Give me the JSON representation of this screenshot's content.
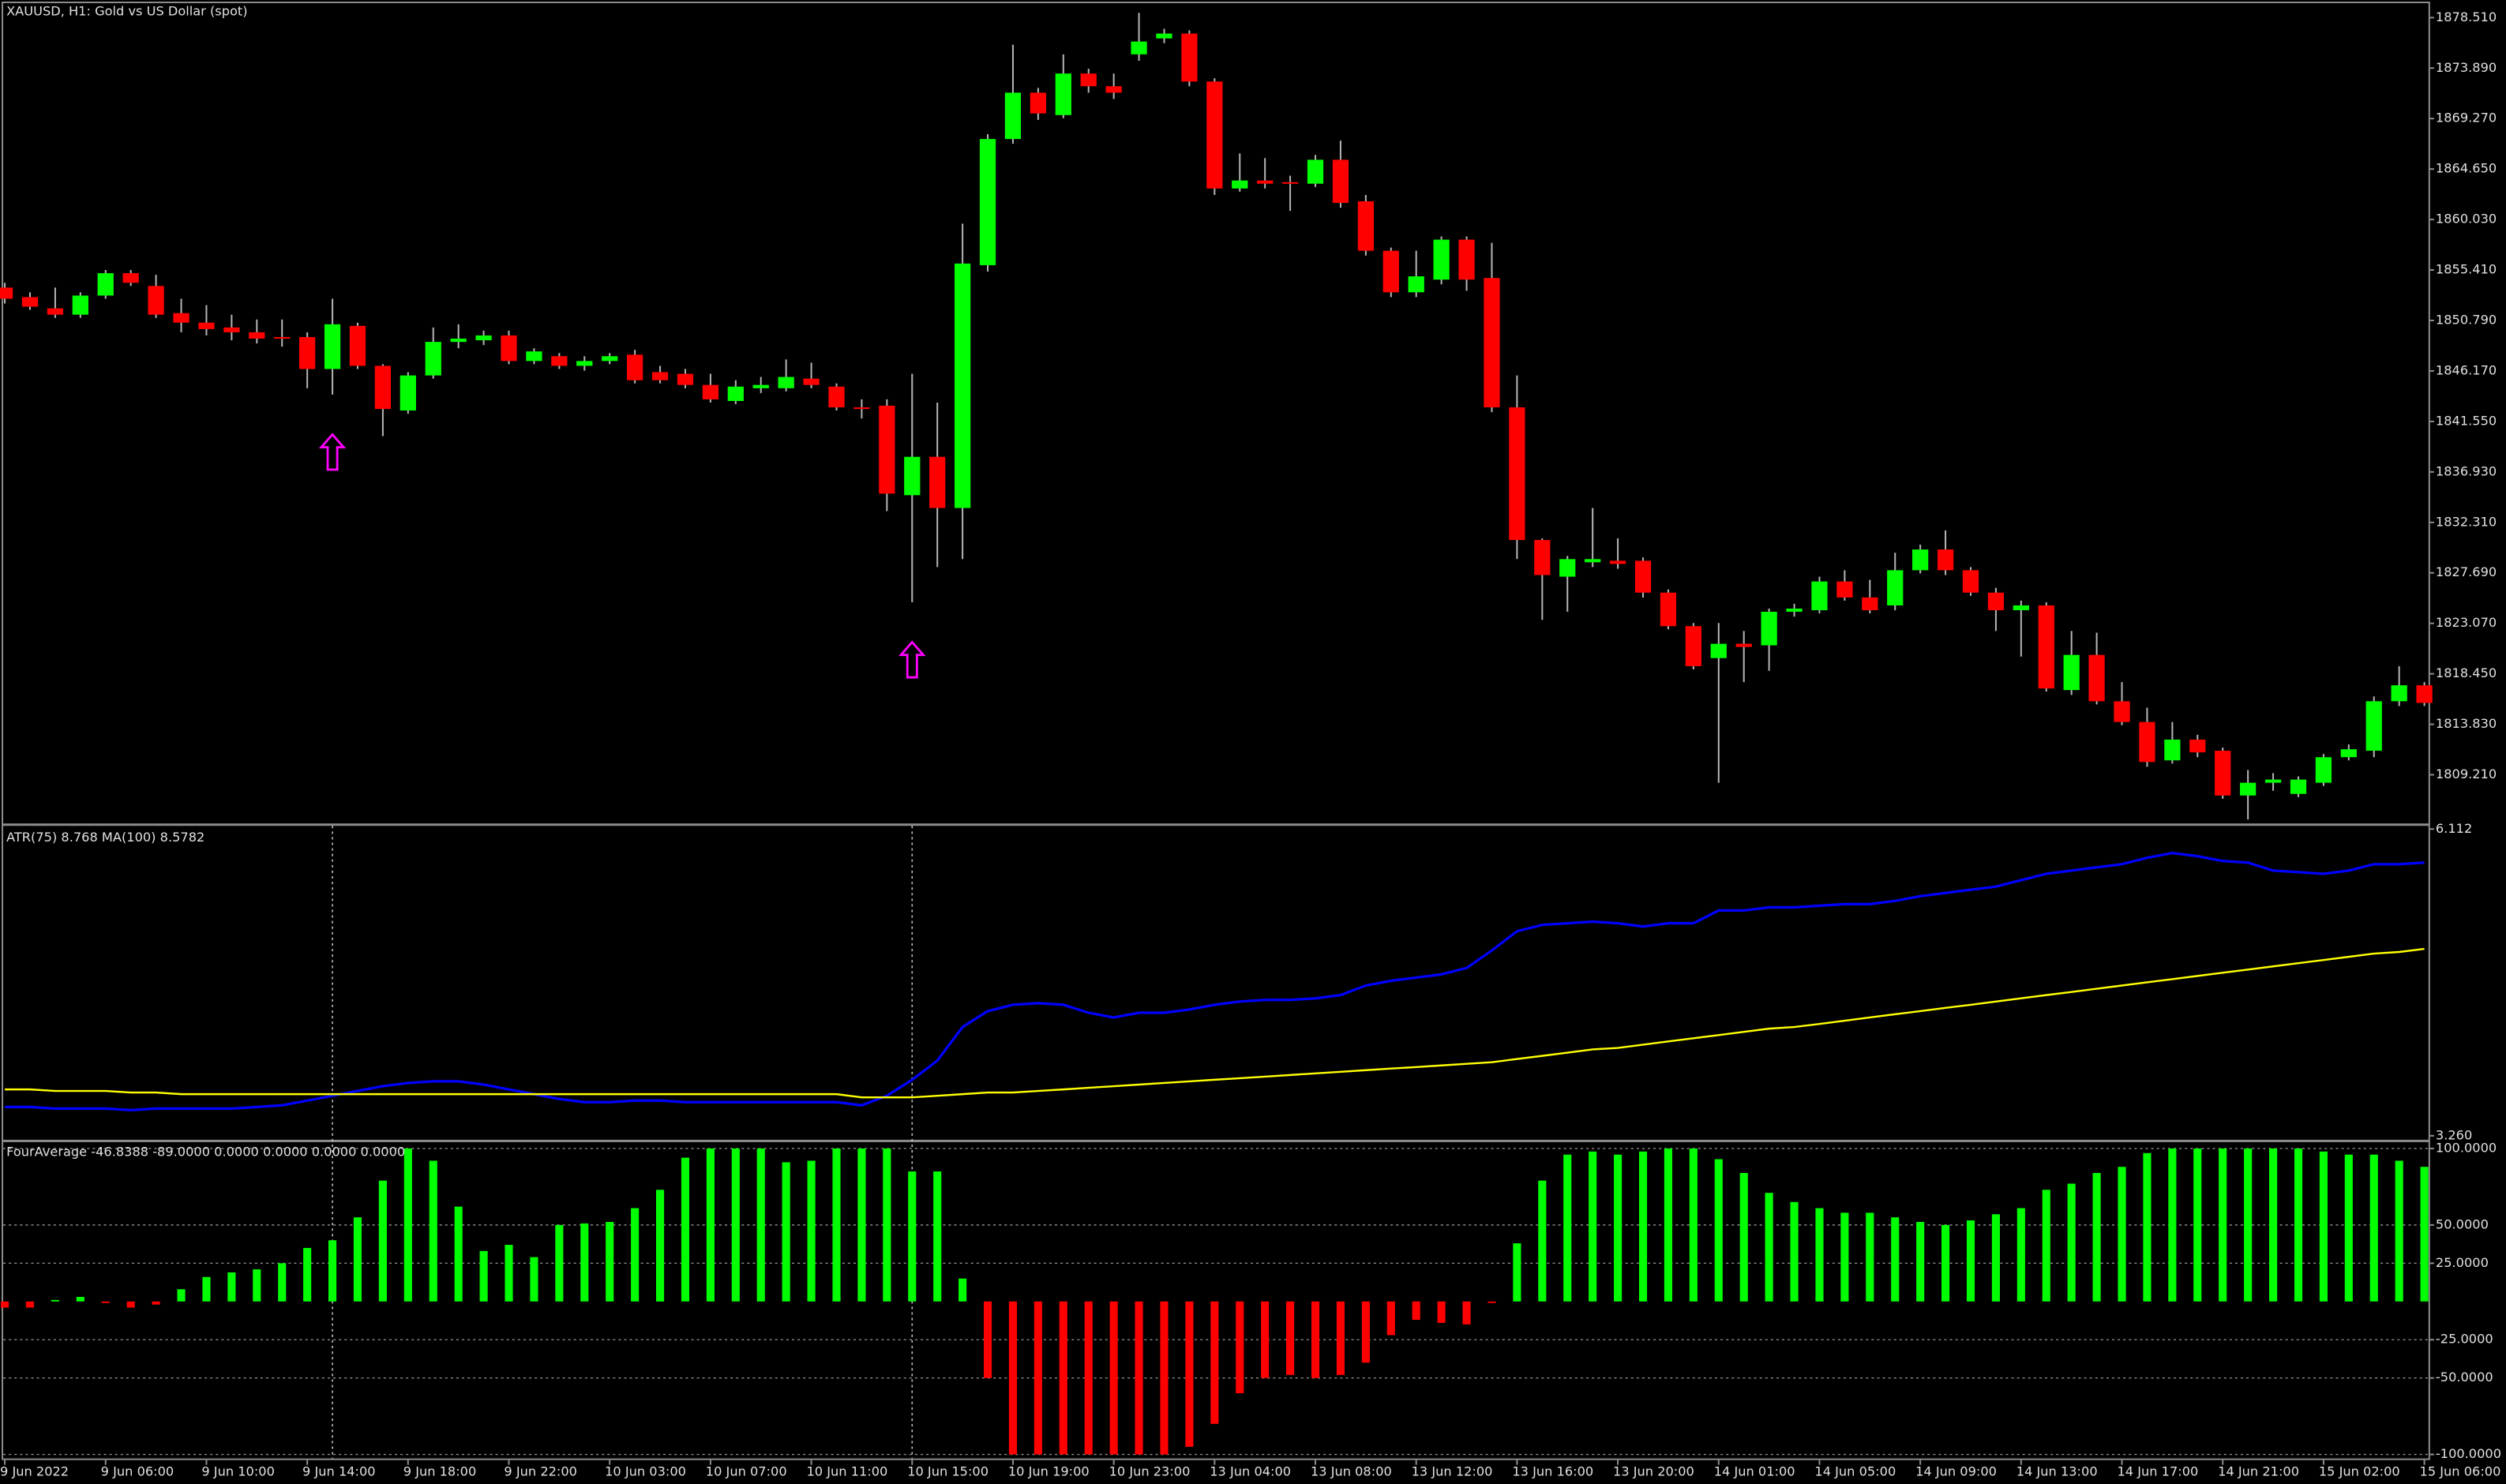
{
  "chart_data": [
    {
      "type": "candlestick",
      "title": "XAUUSD, H1:  Gold vs US Dollar (spot)",
      "open": [
        1853.8,
        1852.93,
        1851.9,
        1851.32,
        1853.07,
        1855.12,
        1853.95,
        1851.46,
        1850.59,
        1850.15,
        1849.71,
        1849.27,
        1849.27,
        1846.35,
        1850.3,
        1846.64,
        1842.55,
        1845.76,
        1848.83,
        1848.98,
        1849.42,
        1847.08,
        1847.52,
        1846.64,
        1847.08,
        1847.66,
        1846.06,
        1845.91,
        1844.89,
        1843.42,
        1844.59,
        1844.59,
        1845.47,
        1844.74,
        1842.84,
        1842.99,
        1834.8,
        1838.31,
        1833.63,
        1855.85,
        1867.4,
        1871.64,
        1869.59,
        1873.39,
        1872.23,
        1875.15,
        1876.61,
        1877.05,
        1872.66,
        1862.87,
        1863.6,
        1863.45,
        1863.31,
        1865.5,
        1861.7,
        1857.17,
        1853.37,
        1854.53,
        1858.19,
        1854.68,
        1842.84,
        1830.7,
        1827.34,
        1828.66,
        1828.8,
        1828.8,
        1825.88,
        1822.81,
        1819.89,
        1821.2,
        1821.06,
        1824.13,
        1824.27,
        1826.9,
        1825.44,
        1824.71,
        1827.93,
        1829.83,
        1827.93,
        1825.88,
        1824.27,
        1824.71,
        1816.96,
        1820.18,
        1815.94,
        1814.04,
        1810.53,
        1812.43,
        1811.41,
        1807.31,
        1808.48,
        1807.46,
        1808.48,
        1810.82,
        1811.41,
        1815.94,
        1817.4
      ],
      "high": [
        1854.24,
        1853.37,
        1853.8,
        1853.37,
        1855.41,
        1855.41,
        1854.97,
        1852.78,
        1852.2,
        1851.32,
        1850.88,
        1850.88,
        1849.71,
        1852.78,
        1850.59,
        1846.79,
        1846.06,
        1850.15,
        1850.44,
        1849.86,
        1849.86,
        1848.25,
        1847.81,
        1847.52,
        1847.81,
        1848.1,
        1846.64,
        1846.35,
        1845.91,
        1845.32,
        1845.62,
        1847.22,
        1846.93,
        1845.03,
        1843.57,
        1843.57,
        1845.91,
        1843.28,
        1859.65,
        1867.84,
        1876.03,
        1872.08,
        1875.15,
        1873.83,
        1873.39,
        1878.95,
        1877.49,
        1877.34,
        1872.96,
        1866.08,
        1865.65,
        1864.04,
        1865.94,
        1867.25,
        1862.28,
        1857.46,
        1857.17,
        1858.48,
        1858.48,
        1857.9,
        1845.76,
        1830.85,
        1829.24,
        1833.63,
        1830.85,
        1829.1,
        1826.17,
        1823.1,
        1823.1,
        1822.37,
        1824.42,
        1824.86,
        1827.34,
        1827.93,
        1827.05,
        1829.53,
        1830.27,
        1831.58,
        1828.22,
        1826.32,
        1825.15,
        1825.0,
        1822.37,
        1822.22,
        1817.69,
        1815.35,
        1814.04,
        1812.87,
        1811.7,
        1809.65,
        1809.36,
        1809.07,
        1811.11,
        1811.99,
        1816.38,
        1819.15,
        1817.69
      ],
      "low": [
        1852.34,
        1851.76,
        1851.03,
        1851.03,
        1852.78,
        1853.95,
        1851.03,
        1849.71,
        1849.42,
        1848.98,
        1848.69,
        1848.39,
        1844.59,
        1844.01,
        1846.35,
        1840.21,
        1842.25,
        1845.47,
        1848.25,
        1848.54,
        1846.79,
        1846.79,
        1846.35,
        1846.2,
        1846.79,
        1845.03,
        1845.03,
        1844.59,
        1843.28,
        1843.13,
        1844.15,
        1844.3,
        1844.59,
        1842.55,
        1841.82,
        1833.34,
        1825.0,
        1828.22,
        1828.95,
        1855.27,
        1866.96,
        1869.15,
        1869.3,
        1871.64,
        1871.06,
        1874.56,
        1876.17,
        1872.23,
        1862.28,
        1862.58,
        1862.87,
        1860.82,
        1863.01,
        1861.11,
        1856.73,
        1852.93,
        1852.93,
        1854.1,
        1853.51,
        1842.4,
        1828.95,
        1823.39,
        1824.13,
        1828.22,
        1828.07,
        1825.44,
        1822.52,
        1818.86,
        1808.48,
        1817.69,
        1818.72,
        1823.69,
        1823.98,
        1825.15,
        1823.98,
        1824.27,
        1827.63,
        1827.49,
        1825.59,
        1822.37,
        1820.03,
        1816.82,
        1816.52,
        1815.65,
        1813.75,
        1809.94,
        1810.24,
        1810.82,
        1807.02,
        1805.12,
        1807.75,
        1807.17,
        1808.19,
        1810.53,
        1810.82,
        1815.5,
        1815.5
      ],
      "close": [
        1852.78,
        1852.05,
        1851.32,
        1853.07,
        1855.12,
        1854.24,
        1851.32,
        1850.59,
        1850.0,
        1849.71,
        1849.13,
        1849.13,
        1846.35,
        1850.44,
        1846.64,
        1842.69,
        1845.76,
        1848.83,
        1849.13,
        1849.42,
        1847.08,
        1847.96,
        1846.64,
        1847.08,
        1847.52,
        1845.32,
        1845.32,
        1844.89,
        1843.57,
        1844.74,
        1844.89,
        1845.62,
        1844.89,
        1842.84,
        1842.69,
        1834.94,
        1838.31,
        1833.63,
        1856.0,
        1867.4,
        1871.64,
        1869.74,
        1873.39,
        1872.23,
        1871.64,
        1876.32,
        1877.05,
        1872.66,
        1862.87,
        1863.6,
        1863.31,
        1863.31,
        1865.5,
        1861.55,
        1857.17,
        1853.37,
        1854.83,
        1858.19,
        1854.53,
        1842.84,
        1830.7,
        1827.49,
        1828.95,
        1828.95,
        1828.51,
        1825.88,
        1822.81,
        1819.15,
        1821.2,
        1820.91,
        1824.13,
        1824.42,
        1826.9,
        1825.44,
        1824.27,
        1827.93,
        1829.83,
        1827.93,
        1825.88,
        1824.27,
        1824.71,
        1817.11,
        1820.18,
        1815.94,
        1814.04,
        1810.38,
        1812.43,
        1811.26,
        1807.31,
        1808.48,
        1808.77,
        1808.77,
        1810.82,
        1811.55,
        1815.94,
        1817.4,
        1815.79
      ],
      "up_color": "#00ff00",
      "down_color": "#ff0000",
      "wick_color": "#b4b4b4",
      "ylim": [
        1804.68,
        1879.83
      ],
      "yticks": [
        {
          "value": 1878.51,
          "label": "1878.510"
        },
        {
          "value": 1873.89,
          "label": "1873.890"
        },
        {
          "value": 1869.27,
          "label": "1869.270"
        },
        {
          "value": 1864.65,
          "label": "1864.650"
        },
        {
          "value": 1860.03,
          "label": "1860.030"
        },
        {
          "value": 1855.41,
          "label": "1855.410"
        },
        {
          "value": 1850.79,
          "label": "1850.790"
        },
        {
          "value": 1846.17,
          "label": "1846.170"
        },
        {
          "value": 1841.55,
          "label": "1841.550"
        },
        {
          "value": 1836.93,
          "label": "1836.930"
        },
        {
          "value": 1832.31,
          "label": "1832.310"
        },
        {
          "value": 1827.69,
          "label": "1827.690"
        },
        {
          "value": 1823.07,
          "label": "1823.070"
        },
        {
          "value": 1818.45,
          "label": "1818.450"
        },
        {
          "value": 1813.83,
          "label": "1813.830"
        },
        {
          "value": 1809.21,
          "label": "1809.210"
        }
      ],
      "grid": false,
      "signals": {
        "x": [
          13,
          36
        ],
        "values": [
          1838.75,
          1819.74
        ],
        "color": "#ff00ff"
      }
    },
    {
      "type": "line",
      "title": "ATR(75) 8.768 MA(100) 8.5782",
      "series": [
        {
          "color": "#0000ff",
          "values": [
            3.528,
            3.528,
            3.513,
            3.513,
            3.513,
            3.498,
            3.513,
            3.513,
            3.513,
            3.513,
            3.528,
            3.543,
            3.587,
            3.632,
            3.677,
            3.721,
            3.751,
            3.766,
            3.766,
            3.736,
            3.691,
            3.647,
            3.602,
            3.573,
            3.573,
            3.587,
            3.587,
            3.573,
            3.573,
            3.573,
            3.573,
            3.573,
            3.573,
            3.573,
            3.543,
            3.632,
            3.781,
            3.959,
            4.271,
            4.419,
            4.478,
            4.493,
            4.478,
            4.404,
            4.36,
            4.404,
            4.404,
            4.434,
            4.478,
            4.508,
            4.523,
            4.523,
            4.538,
            4.568,
            4.657,
            4.701,
            4.731,
            4.761,
            4.82,
            4.983,
            5.162,
            5.221,
            5.236,
            5.251,
            5.236,
            5.206,
            5.236,
            5.236,
            5.355,
            5.355,
            5.384,
            5.384,
            5.399,
            5.414,
            5.414,
            5.444,
            5.488,
            5.518,
            5.548,
            5.577,
            5.637,
            5.696,
            5.726,
            5.756,
            5.785,
            5.845,
            5.889,
            5.86,
            5.815,
            5.8,
            5.726,
            5.711,
            5.696,
            5.726,
            5.785,
            5.785,
            5.8
          ]
        },
        {
          "color": "#ffff00",
          "values": [
            3.691,
            3.691,
            3.677,
            3.677,
            3.677,
            3.662,
            3.662,
            3.647,
            3.647,
            3.647,
            3.647,
            3.647,
            3.647,
            3.647,
            3.647,
            3.647,
            3.647,
            3.647,
            3.647,
            3.647,
            3.647,
            3.647,
            3.647,
            3.647,
            3.647,
            3.647,
            3.647,
            3.647,
            3.647,
            3.647,
            3.647,
            3.647,
            3.647,
            3.647,
            3.617,
            3.617,
            3.617,
            3.632,
            3.647,
            3.662,
            3.662,
            3.677,
            3.691,
            3.706,
            3.721,
            3.736,
            3.751,
            3.766,
            3.781,
            3.795,
            3.81,
            3.825,
            3.84,
            3.855,
            3.87,
            3.885,
            3.899,
            3.914,
            3.929,
            3.944,
            3.974,
            4.003,
            4.033,
            4.063,
            4.077,
            4.107,
            4.137,
            4.167,
            4.196,
            4.226,
            4.256,
            4.271,
            4.3,
            4.33,
            4.36,
            4.39,
            4.419,
            4.449,
            4.478,
            4.508,
            4.538,
            4.568,
            4.597,
            4.627,
            4.657,
            4.687,
            4.716,
            4.746,
            4.776,
            4.805,
            4.835,
            4.865,
            4.894,
            4.924,
            4.954,
            4.969,
            4.998
          ]
        }
      ],
      "ylim": [
        3.26,
        6.112
      ],
      "yticks": [
        6.112,
        {
          "value": 3.26,
          "label": "3.260"
        }
      ],
      "grid": false
    },
    {
      "type": "bar",
      "title": "FourAverage -46.8388 -89.0000 0.0000 0.0000 0.0000 0.0000",
      "categories": [
        "9 Jun 2022",
        null,
        null,
        null,
        "9 Jun 06:00",
        null,
        null,
        null,
        "9 Jun 10:00",
        null,
        null,
        null,
        "9 Jun 14:00",
        null,
        null,
        null,
        "9 Jun 18:00",
        null,
        null,
        null,
        "9 Jun 22:00",
        null,
        null,
        null,
        "10 Jun 03:00",
        null,
        null,
        null,
        "10 Jun 07:00",
        null,
        null,
        null,
        "10 Jun 11:00",
        null,
        null,
        null,
        "10 Jun 15:00",
        null,
        null,
        null,
        "10 Jun 19:00",
        null,
        null,
        null,
        "10 Jun 23:00",
        null,
        null,
        null,
        "13 Jun 04:00",
        null,
        null,
        null,
        "13 Jun 08:00",
        null,
        null,
        null,
        "13 Jun 12:00",
        null,
        null,
        null,
        "13 Jun 16:00",
        null,
        null,
        null,
        "13 Jun 20:00",
        null,
        null,
        null,
        "14 Jun 01:00",
        null,
        null,
        null,
        "14 Jun 05:00",
        null,
        null,
        null,
        "14 Jun 09:00",
        null,
        null,
        null,
        "14 Jun 13:00",
        null,
        null,
        null,
        "14 Jun 17:00",
        null,
        null,
        null,
        "14 Jun 21:00",
        null,
        null,
        null,
        "15 Jun 02:00",
        null,
        null,
        null,
        "15 Jun 06:00"
      ],
      "values": [
        -4,
        -4,
        1,
        3,
        -1,
        -4,
        -2,
        8,
        16,
        19,
        21,
        25,
        35,
        40,
        55,
        79,
        100,
        92,
        62,
        33,
        37,
        29,
        50,
        51,
        52,
        61,
        73,
        94,
        100,
        100,
        100,
        91,
        92,
        100,
        100,
        100,
        85,
        85,
        15,
        -50,
        -100,
        -100,
        -100,
        -100,
        -100,
        -100,
        -100,
        -95,
        -80,
        -60,
        -50,
        -48,
        -50,
        -48,
        -40,
        -22,
        -12,
        -14,
        -15,
        -1,
        38,
        79,
        96,
        98,
        96,
        98,
        100,
        100,
        93,
        84,
        71,
        65,
        61,
        58,
        58,
        55,
        52,
        50,
        53,
        57,
        61,
        73,
        77,
        84,
        88,
        97,
        100,
        100,
        100,
        100,
        100,
        100,
        98,
        96,
        96,
        92,
        88
      ],
      "up_color": "#00ff00",
      "down_color": "#ff0000",
      "ylim": [
        -102.6,
        103.1
      ],
      "yticks": [
        {
          "value": 100,
          "label": "100.0000"
        },
        {
          "value": 50,
          "label": "50.0000"
        },
        {
          "value": 25,
          "label": "25.0000"
        },
        {
          "value": -25,
          "label": "-25.0000"
        },
        {
          "value": -50,
          "label": "-50.0000"
        },
        {
          "value": -100,
          "label": "-100.0000"
        }
      ],
      "grid": true
    }
  ]
}
